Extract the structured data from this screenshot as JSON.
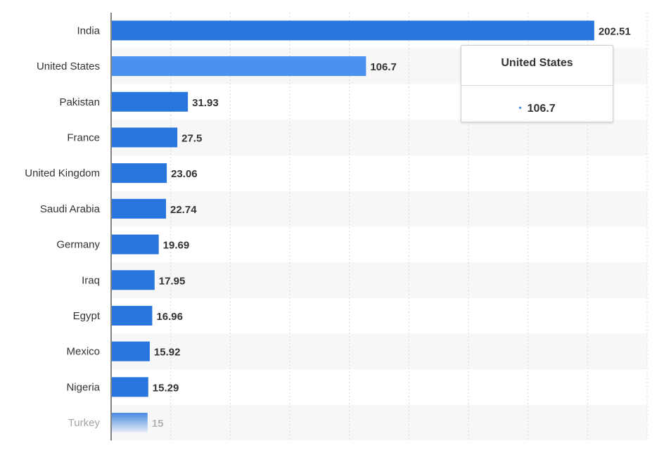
{
  "chart_data": {
    "type": "bar",
    "orientation": "horizontal",
    "categories": [
      "India",
      "United States",
      "Pakistan",
      "France",
      "United Kingdom",
      "Saudi Arabia",
      "Germany",
      "Iraq",
      "Egypt",
      "Mexico",
      "Nigeria",
      "Turkey"
    ],
    "values": [
      202.51,
      106.7,
      31.93,
      27.5,
      23.06,
      22.74,
      19.69,
      17.95,
      16.96,
      15.92,
      15.29,
      15
    ],
    "value_labels": [
      "202.51",
      "106.7",
      "31.93",
      "27.5",
      "23.06",
      "22.74",
      "19.69",
      "17.95",
      "16.96",
      "15.92",
      "15.29",
      "15"
    ],
    "xlim": [
      0,
      225
    ],
    "grid": "vertical dashed",
    "highlighted_category": "United States",
    "faded_category": "Turkey",
    "colors": {
      "bar": "#2876dd",
      "bar_highlight": "#4a91f0",
      "band": "#f7f7f7",
      "grid": "#d9d9d9",
      "axis": "#333333"
    }
  },
  "tooltip": {
    "title": "United States",
    "value": "106.7",
    "bullet": "•"
  }
}
